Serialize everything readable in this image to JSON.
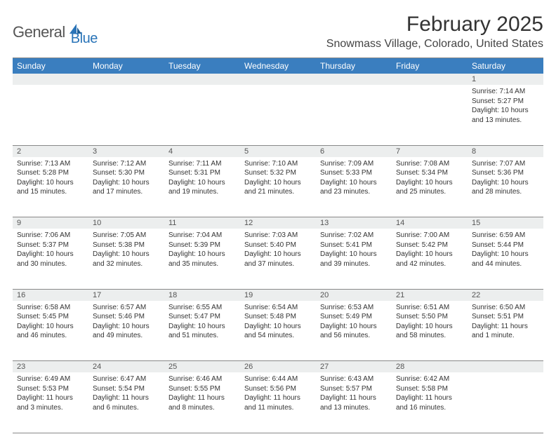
{
  "logo": {
    "text1": "General",
    "text2": "Blue"
  },
  "title": "February 2025",
  "location": "Snowmass Village, Colorado, United States",
  "colors": {
    "header_bg": "#3a7ebf",
    "header_text": "#ffffff",
    "daynum_bg": "#eceeee",
    "text": "#333333",
    "rule": "#888888",
    "logo_gray": "#555555",
    "logo_blue": "#2a74b8"
  },
  "weekdays": [
    "Sunday",
    "Monday",
    "Tuesday",
    "Wednesday",
    "Thursday",
    "Friday",
    "Saturday"
  ],
  "weeks": [
    [
      {
        "n": "",
        "lines": []
      },
      {
        "n": "",
        "lines": []
      },
      {
        "n": "",
        "lines": []
      },
      {
        "n": "",
        "lines": []
      },
      {
        "n": "",
        "lines": []
      },
      {
        "n": "",
        "lines": []
      },
      {
        "n": "1",
        "lines": [
          "Sunrise: 7:14 AM",
          "Sunset: 5:27 PM",
          "Daylight: 10 hours and 13 minutes."
        ]
      }
    ],
    [
      {
        "n": "2",
        "lines": [
          "Sunrise: 7:13 AM",
          "Sunset: 5:28 PM",
          "Daylight: 10 hours and 15 minutes."
        ]
      },
      {
        "n": "3",
        "lines": [
          "Sunrise: 7:12 AM",
          "Sunset: 5:30 PM",
          "Daylight: 10 hours and 17 minutes."
        ]
      },
      {
        "n": "4",
        "lines": [
          "Sunrise: 7:11 AM",
          "Sunset: 5:31 PM",
          "Daylight: 10 hours and 19 minutes."
        ]
      },
      {
        "n": "5",
        "lines": [
          "Sunrise: 7:10 AM",
          "Sunset: 5:32 PM",
          "Daylight: 10 hours and 21 minutes."
        ]
      },
      {
        "n": "6",
        "lines": [
          "Sunrise: 7:09 AM",
          "Sunset: 5:33 PM",
          "Daylight: 10 hours and 23 minutes."
        ]
      },
      {
        "n": "7",
        "lines": [
          "Sunrise: 7:08 AM",
          "Sunset: 5:34 PM",
          "Daylight: 10 hours and 25 minutes."
        ]
      },
      {
        "n": "8",
        "lines": [
          "Sunrise: 7:07 AM",
          "Sunset: 5:36 PM",
          "Daylight: 10 hours and 28 minutes."
        ]
      }
    ],
    [
      {
        "n": "9",
        "lines": [
          "Sunrise: 7:06 AM",
          "Sunset: 5:37 PM",
          "Daylight: 10 hours and 30 minutes."
        ]
      },
      {
        "n": "10",
        "lines": [
          "Sunrise: 7:05 AM",
          "Sunset: 5:38 PM",
          "Daylight: 10 hours and 32 minutes."
        ]
      },
      {
        "n": "11",
        "lines": [
          "Sunrise: 7:04 AM",
          "Sunset: 5:39 PM",
          "Daylight: 10 hours and 35 minutes."
        ]
      },
      {
        "n": "12",
        "lines": [
          "Sunrise: 7:03 AM",
          "Sunset: 5:40 PM",
          "Daylight: 10 hours and 37 minutes."
        ]
      },
      {
        "n": "13",
        "lines": [
          "Sunrise: 7:02 AM",
          "Sunset: 5:41 PM",
          "Daylight: 10 hours and 39 minutes."
        ]
      },
      {
        "n": "14",
        "lines": [
          "Sunrise: 7:00 AM",
          "Sunset: 5:42 PM",
          "Daylight: 10 hours and 42 minutes."
        ]
      },
      {
        "n": "15",
        "lines": [
          "Sunrise: 6:59 AM",
          "Sunset: 5:44 PM",
          "Daylight: 10 hours and 44 minutes."
        ]
      }
    ],
    [
      {
        "n": "16",
        "lines": [
          "Sunrise: 6:58 AM",
          "Sunset: 5:45 PM",
          "Daylight: 10 hours and 46 minutes."
        ]
      },
      {
        "n": "17",
        "lines": [
          "Sunrise: 6:57 AM",
          "Sunset: 5:46 PM",
          "Daylight: 10 hours and 49 minutes."
        ]
      },
      {
        "n": "18",
        "lines": [
          "Sunrise: 6:55 AM",
          "Sunset: 5:47 PM",
          "Daylight: 10 hours and 51 minutes."
        ]
      },
      {
        "n": "19",
        "lines": [
          "Sunrise: 6:54 AM",
          "Sunset: 5:48 PM",
          "Daylight: 10 hours and 54 minutes."
        ]
      },
      {
        "n": "20",
        "lines": [
          "Sunrise: 6:53 AM",
          "Sunset: 5:49 PM",
          "Daylight: 10 hours and 56 minutes."
        ]
      },
      {
        "n": "21",
        "lines": [
          "Sunrise: 6:51 AM",
          "Sunset: 5:50 PM",
          "Daylight: 10 hours and 58 minutes."
        ]
      },
      {
        "n": "22",
        "lines": [
          "Sunrise: 6:50 AM",
          "Sunset: 5:51 PM",
          "Daylight: 11 hours and 1 minute."
        ]
      }
    ],
    [
      {
        "n": "23",
        "lines": [
          "Sunrise: 6:49 AM",
          "Sunset: 5:53 PM",
          "Daylight: 11 hours and 3 minutes."
        ]
      },
      {
        "n": "24",
        "lines": [
          "Sunrise: 6:47 AM",
          "Sunset: 5:54 PM",
          "Daylight: 11 hours and 6 minutes."
        ]
      },
      {
        "n": "25",
        "lines": [
          "Sunrise: 6:46 AM",
          "Sunset: 5:55 PM",
          "Daylight: 11 hours and 8 minutes."
        ]
      },
      {
        "n": "26",
        "lines": [
          "Sunrise: 6:44 AM",
          "Sunset: 5:56 PM",
          "Daylight: 11 hours and 11 minutes."
        ]
      },
      {
        "n": "27",
        "lines": [
          "Sunrise: 6:43 AM",
          "Sunset: 5:57 PM",
          "Daylight: 11 hours and 13 minutes."
        ]
      },
      {
        "n": "28",
        "lines": [
          "Sunrise: 6:42 AM",
          "Sunset: 5:58 PM",
          "Daylight: 11 hours and 16 minutes."
        ]
      },
      {
        "n": "",
        "lines": []
      }
    ]
  ]
}
